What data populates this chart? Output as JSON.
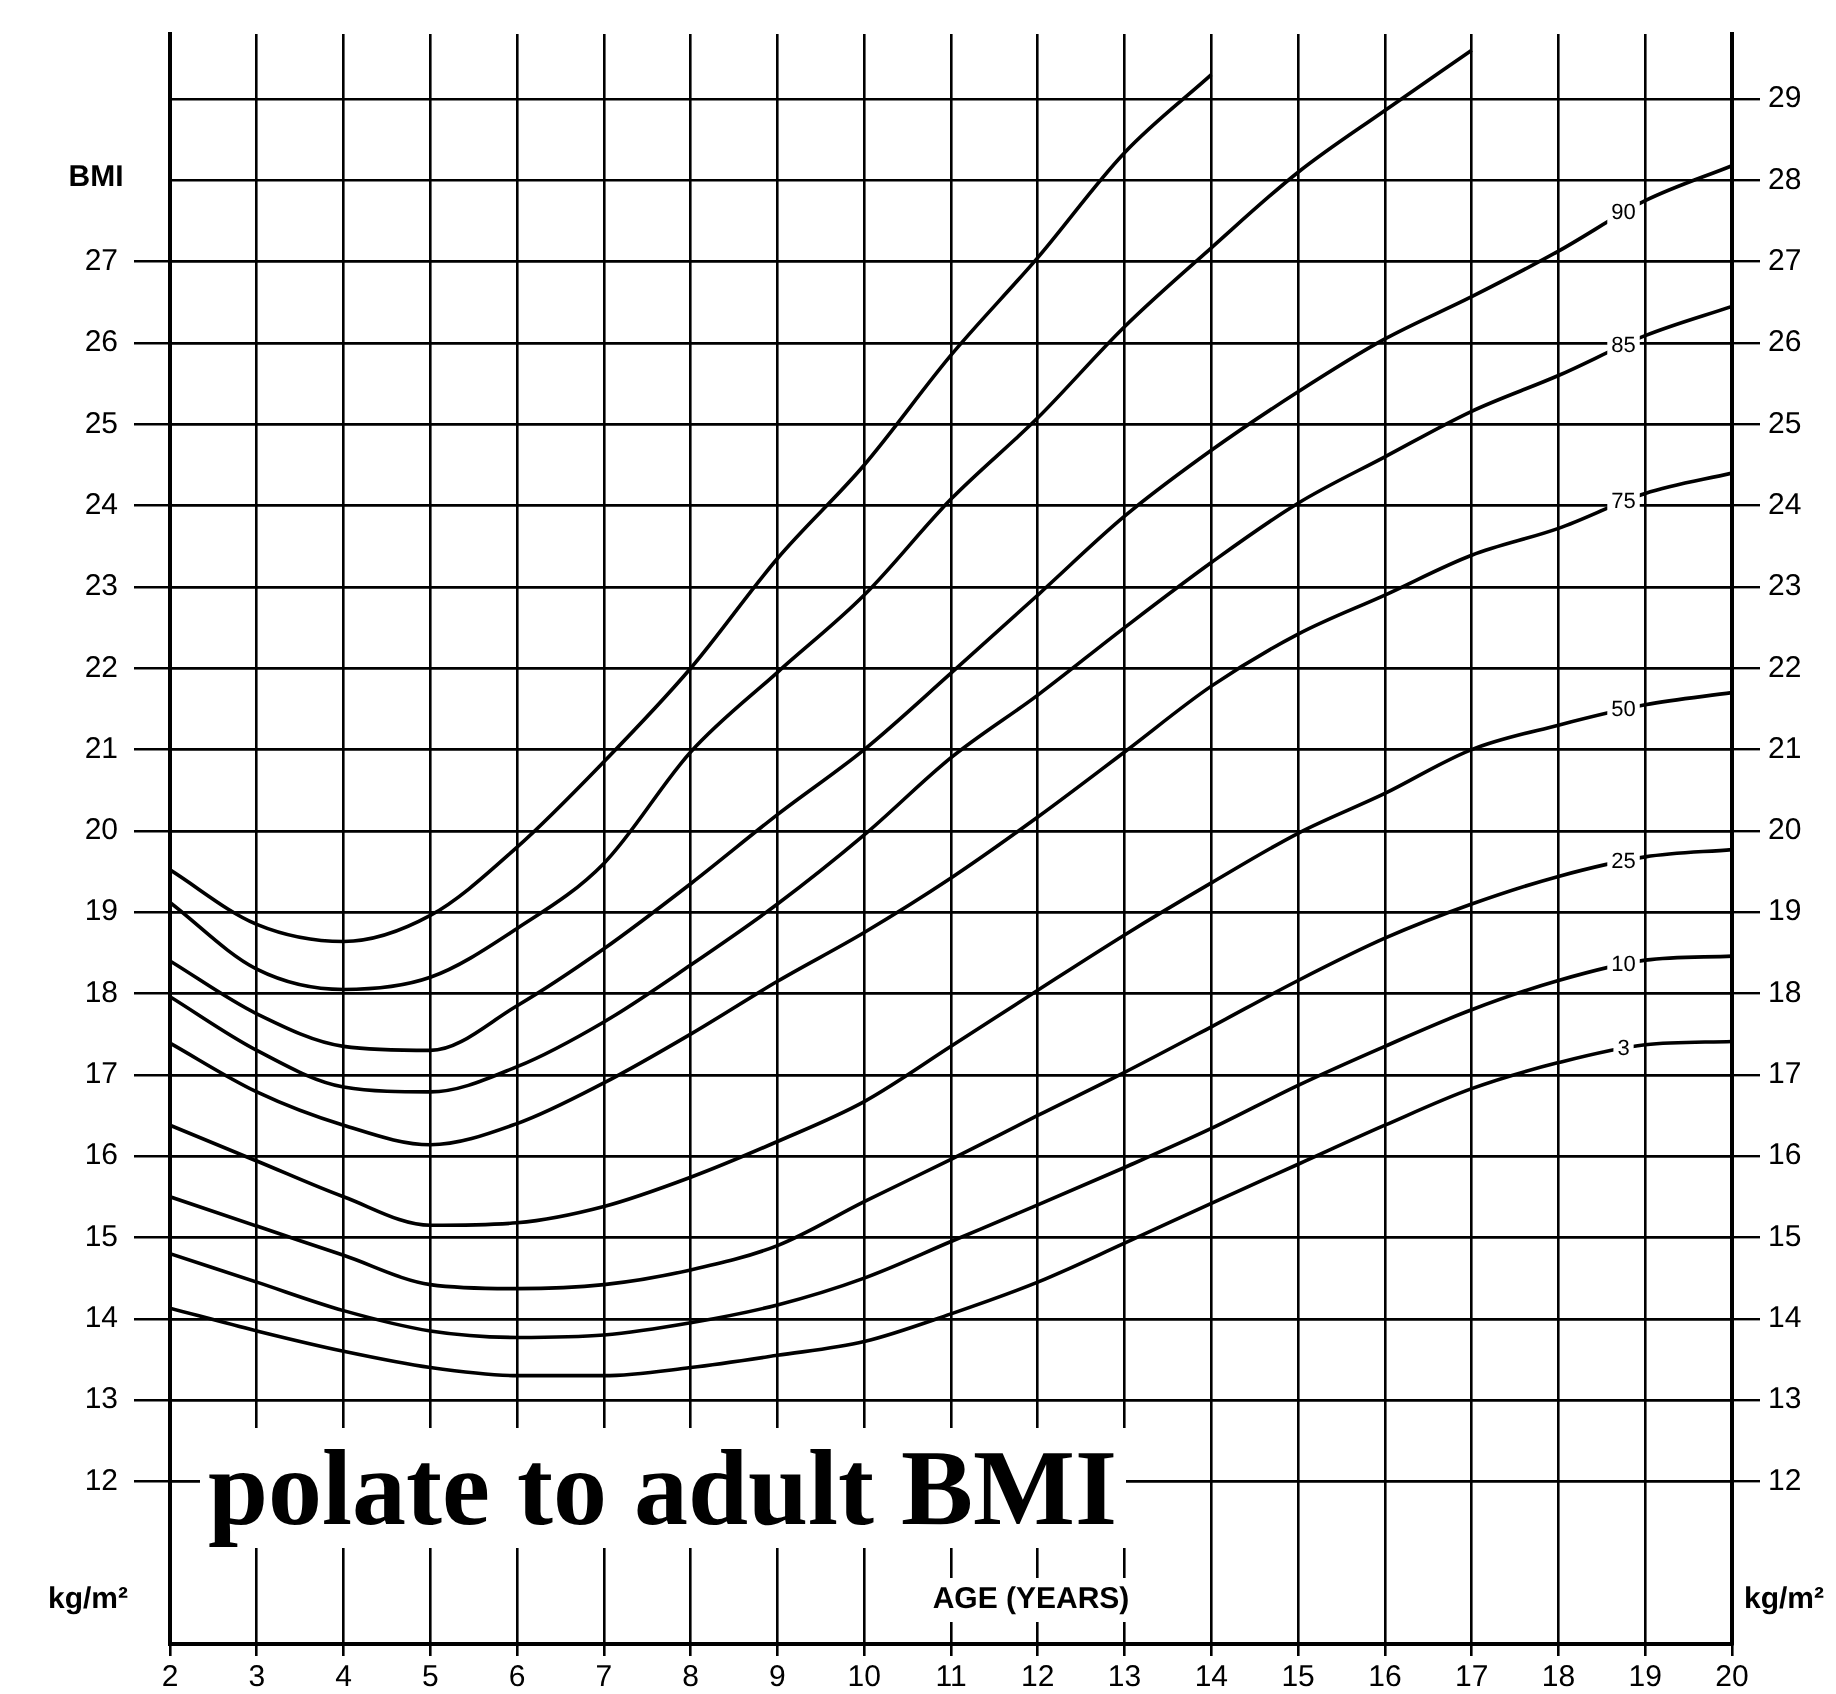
{
  "chart_data": {
    "type": "line",
    "xlabel": "AGE (YEARS)",
    "ylabel": "BMI",
    "x": [
      2,
      3,
      4,
      5,
      6,
      7,
      8,
      9,
      10,
      11,
      12,
      13,
      14,
      15,
      16,
      17,
      18,
      19,
      20
    ],
    "xlim": [
      2,
      20
    ],
    "xticks": [
      2,
      3,
      4,
      5,
      6,
      7,
      8,
      9,
      10,
      11,
      12,
      13,
      14,
      15,
      16,
      17,
      18,
      19,
      20
    ],
    "ylim": [
      10,
      29.8
    ],
    "yticks": [
      12,
      13,
      14,
      15,
      16,
      17,
      18,
      19,
      20,
      21,
      22,
      23,
      24,
      25,
      26,
      27
    ],
    "y2lim": [
      10,
      29.8
    ],
    "y2ticks": [
      12,
      13,
      14,
      15,
      16,
      17,
      18,
      19,
      20,
      21,
      22,
      23,
      24,
      25,
      26,
      27,
      28,
      29
    ],
    "grid": true,
    "legend": false,
    "marker": "none",
    "line_style": "solid",
    "series": [
      {
        "name": "3",
        "color": "#000000",
        "values": [
          14.13,
          13.85,
          13.6,
          13.4,
          13.3,
          13.3,
          13.4,
          13.55,
          13.72,
          14.06,
          14.45,
          14.93,
          15.42,
          15.9,
          16.38,
          16.83,
          17.15,
          17.37,
          17.41
        ]
      },
      {
        "name": "10",
        "color": "#000000",
        "values": [
          14.8,
          14.45,
          14.1,
          13.85,
          13.77,
          13.8,
          13.95,
          14.17,
          14.5,
          14.95,
          15.4,
          15.86,
          16.34,
          16.87,
          17.35,
          17.8,
          18.16,
          18.41,
          18.46
        ]
      },
      {
        "name": "25",
        "color": "#000000",
        "values": [
          15.5,
          15.14,
          14.78,
          14.42,
          14.37,
          14.42,
          14.6,
          14.9,
          15.44,
          15.96,
          16.5,
          17.03,
          17.59,
          18.16,
          18.68,
          19.1,
          19.44,
          19.68,
          19.77
        ]
      },
      {
        "name": "50",
        "color": "#000000",
        "values": [
          16.38,
          15.94,
          15.5,
          15.15,
          15.18,
          15.38,
          15.74,
          16.18,
          16.67,
          17.35,
          18.04,
          18.72,
          19.36,
          19.97,
          20.46,
          21.0,
          21.3,
          21.55,
          21.7
        ]
      },
      {
        "name": "75",
        "color": "#000000",
        "values": [
          17.39,
          16.79,
          16.38,
          16.14,
          16.4,
          16.9,
          17.5,
          18.15,
          18.75,
          19.42,
          20.17,
          20.97,
          21.78,
          22.42,
          22.9,
          23.39,
          23.72,
          24.15,
          24.4
        ]
      },
      {
        "name": "85",
        "color": "#000000",
        "values": [
          17.96,
          17.3,
          16.85,
          16.79,
          17.1,
          17.65,
          18.35,
          19.1,
          19.95,
          20.9,
          21.67,
          22.5,
          23.3,
          24.03,
          24.6,
          25.16,
          25.6,
          26.09,
          26.45
        ]
      },
      {
        "name": "90",
        "color": "#000000",
        "values": [
          18.4,
          17.75,
          17.35,
          17.3,
          17.85,
          18.55,
          19.35,
          20.2,
          21.0,
          21.94,
          22.9,
          23.87,
          24.68,
          25.4,
          26.05,
          26.57,
          27.13,
          27.75,
          28.18
        ]
      },
      {
        "color": "#000000",
        "values": [
          19.12,
          18.3,
          18.05,
          18.2,
          18.8,
          19.6,
          20.97,
          21.95,
          22.9,
          24.08,
          25.08,
          26.2,
          27.17,
          28.1,
          28.86,
          29.6,
          null,
          null,
          null
        ]
      },
      {
        "color": "#000000",
        "values": [
          19.52,
          18.85,
          18.64,
          18.96,
          19.8,
          20.85,
          22.0,
          23.35,
          24.5,
          25.85,
          27.05,
          28.34,
          29.3,
          null,
          null,
          null,
          null,
          null,
          null
        ]
      }
    ],
    "annotations": [
      "kg/m²",
      "kg/m²",
      "polate to adult BMI"
    ]
  }
}
